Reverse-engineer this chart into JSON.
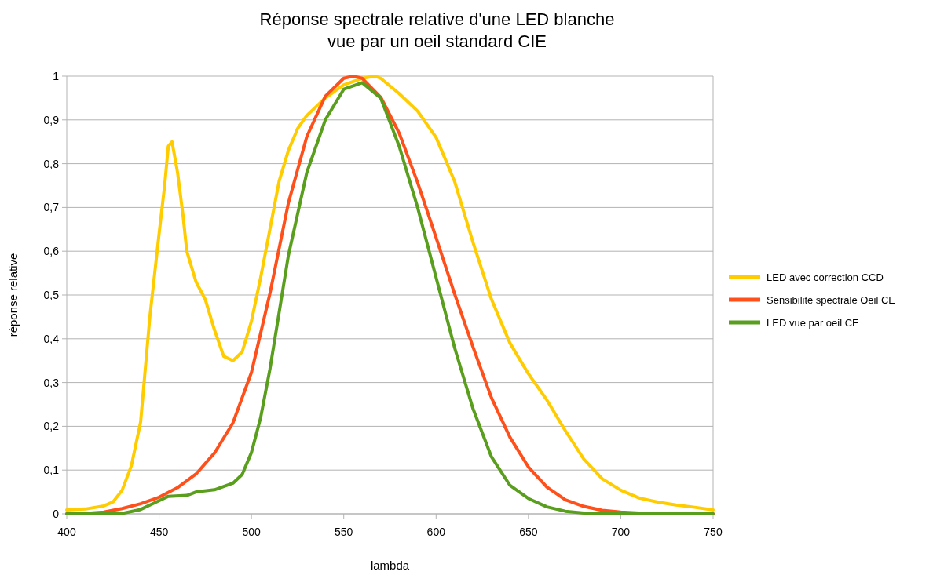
{
  "chart_data": {
    "type": "line",
    "title": "Réponse spectrale relative d'une LED blanche\nvue par un oeil standard CIE",
    "xlabel": "lambda",
    "ylabel": "réponse relative",
    "xlim": [
      400,
      750
    ],
    "xticks": [
      400,
      450,
      500,
      550,
      600,
      650,
      700,
      750
    ],
    "ylim": [
      0,
      1
    ],
    "yticks": [
      0,
      {
        "value": 0.1,
        "label": "0,1"
      },
      {
        "value": 0.2,
        "label": "0,2"
      },
      {
        "value": 0.3,
        "label": "0,3"
      },
      {
        "value": 0.4,
        "label": "0,4"
      },
      {
        "value": 0.5,
        "label": "0,5"
      },
      {
        "value": 0.6,
        "label": "0,6"
      },
      {
        "value": 0.7,
        "label": "0,7"
      },
      {
        "value": 0.8,
        "label": "0,8"
      },
      {
        "value": 0.9,
        "label": "0,9"
      },
      1
    ],
    "grid": "y",
    "legend": "right",
    "marker": "none",
    "line_style": "solid",
    "series": [
      {
        "name": "LED avec correction CCD",
        "color": "#ffcc00",
        "x": [
          400,
          410,
          420,
          425,
          430,
          435,
          440,
          445,
          450,
          453,
          455,
          457,
          460,
          463,
          465,
          470,
          475,
          480,
          485,
          490,
          495,
          500,
          505,
          510,
          515,
          520,
          525,
          530,
          540,
          550,
          560,
          567,
          570,
          580,
          590,
          600,
          610,
          620,
          630,
          640,
          650,
          660,
          670,
          680,
          690,
          700,
          710,
          720,
          730,
          740,
          750
        ],
        "values": [
          0.009,
          0.011,
          0.018,
          0.027,
          0.054,
          0.11,
          0.21,
          0.45,
          0.64,
          0.75,
          0.84,
          0.85,
          0.78,
          0.68,
          0.6,
          0.53,
          0.49,
          0.42,
          0.36,
          0.35,
          0.37,
          0.44,
          0.54,
          0.65,
          0.76,
          0.83,
          0.88,
          0.91,
          0.95,
          0.98,
          0.995,
          1,
          0.995,
          0.96,
          0.92,
          0.86,
          0.76,
          0.62,
          0.49,
          0.39,
          0.32,
          0.26,
          0.19,
          0.125,
          0.08,
          0.054,
          0.036,
          0.027,
          0.02,
          0.015,
          0.009
        ]
      },
      {
        "name": "Sensibilité spectrale Oeil CE",
        "color": "#ff4f1a",
        "x": [
          400,
          410,
          420,
          430,
          440,
          450,
          460,
          470,
          480,
          490,
          500,
          510,
          520,
          530,
          540,
          550,
          555,
          560,
          570,
          580,
          590,
          600,
          610,
          620,
          630,
          640,
          650,
          660,
          670,
          680,
          690,
          700,
          710,
          720,
          750
        ],
        "values": [
          0,
          0.001,
          0.004,
          0.012,
          0.023,
          0.038,
          0.06,
          0.091,
          0.139,
          0.208,
          0.323,
          0.503,
          0.71,
          0.862,
          0.954,
          0.995,
          1,
          0.995,
          0.952,
          0.87,
          0.757,
          0.631,
          0.503,
          0.381,
          0.265,
          0.175,
          0.107,
          0.061,
          0.032,
          0.017,
          0.008,
          0.004,
          0.002,
          0.001,
          0
        ]
      },
      {
        "name": "LED vue par oeil CE",
        "color": "#5a9e1e",
        "x": [
          400,
          420,
          430,
          440,
          450,
          455,
          465,
          470,
          480,
          490,
          495,
          500,
          505,
          510,
          520,
          530,
          540,
          550,
          560,
          570,
          580,
          590,
          600,
          610,
          620,
          630,
          640,
          650,
          660,
          670,
          680,
          700,
          750
        ],
        "values": [
          0,
          0,
          0.001,
          0.01,
          0.03,
          0.04,
          0.042,
          0.05,
          0.055,
          0.07,
          0.09,
          0.14,
          0.22,
          0.33,
          0.59,
          0.78,
          0.9,
          0.97,
          0.985,
          0.95,
          0.84,
          0.7,
          0.54,
          0.38,
          0.24,
          0.13,
          0.065,
          0.035,
          0.016,
          0.006,
          0.002,
          0,
          0
        ]
      }
    ]
  }
}
